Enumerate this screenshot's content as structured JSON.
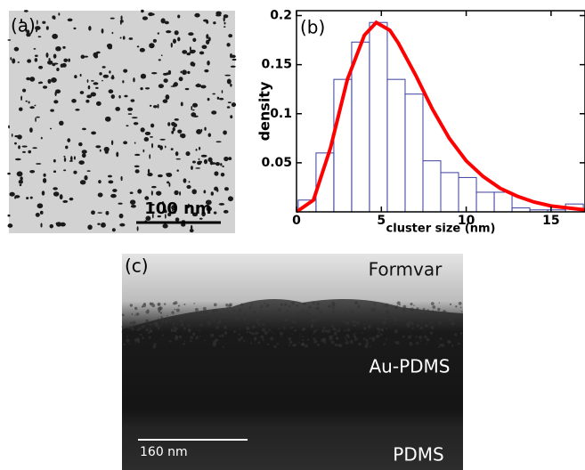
{
  "panels": {
    "a": {
      "label": "(a)",
      "scale_bar": "100 nm"
    },
    "c": {
      "label": "(c)",
      "layers": [
        "Formvar",
        "Au-PDMS",
        "PDMS"
      ],
      "scale_bar": "160 nm"
    }
  },
  "chart_data": {
    "type": "histogram",
    "label": "(b)",
    "x_label": "cluster size (nm)",
    "y_label": "density",
    "bins": [
      0.1,
      1.15,
      2.2,
      3.25,
      4.3,
      5.35,
      6.4,
      7.45,
      8.5,
      9.55,
      10.6,
      11.65,
      12.7,
      13.75,
      14.8,
      15.85,
      16.9
    ],
    "values": [
      0.012,
      0.06,
      0.135,
      0.173,
      0.193,
      0.135,
      0.12,
      0.052,
      0.04,
      0.035,
      0.02,
      0.02,
      0.004,
      0.002,
      0.002,
      0.008
    ],
    "color": "#3b3f9a",
    "fit": {
      "color": "#ff0000",
      "x": [
        0,
        1,
        2,
        3,
        4,
        4.7,
        5.5,
        6,
        7,
        8,
        9,
        10,
        11,
        12,
        13,
        14,
        15,
        16,
        17
      ],
      "values": [
        0,
        0.012,
        0.065,
        0.135,
        0.18,
        0.193,
        0.185,
        0.172,
        0.14,
        0.105,
        0.075,
        0.052,
        0.036,
        0.024,
        0.016,
        0.01,
        0.006,
        0.004,
        0.002
      ]
    },
    "xlim": [
      0,
      17
    ],
    "ylim": [
      0,
      0.205
    ],
    "xticks": [
      0,
      5,
      10,
      15
    ],
    "yticks": [
      0.05,
      0.1,
      0.15,
      0.2
    ]
  }
}
